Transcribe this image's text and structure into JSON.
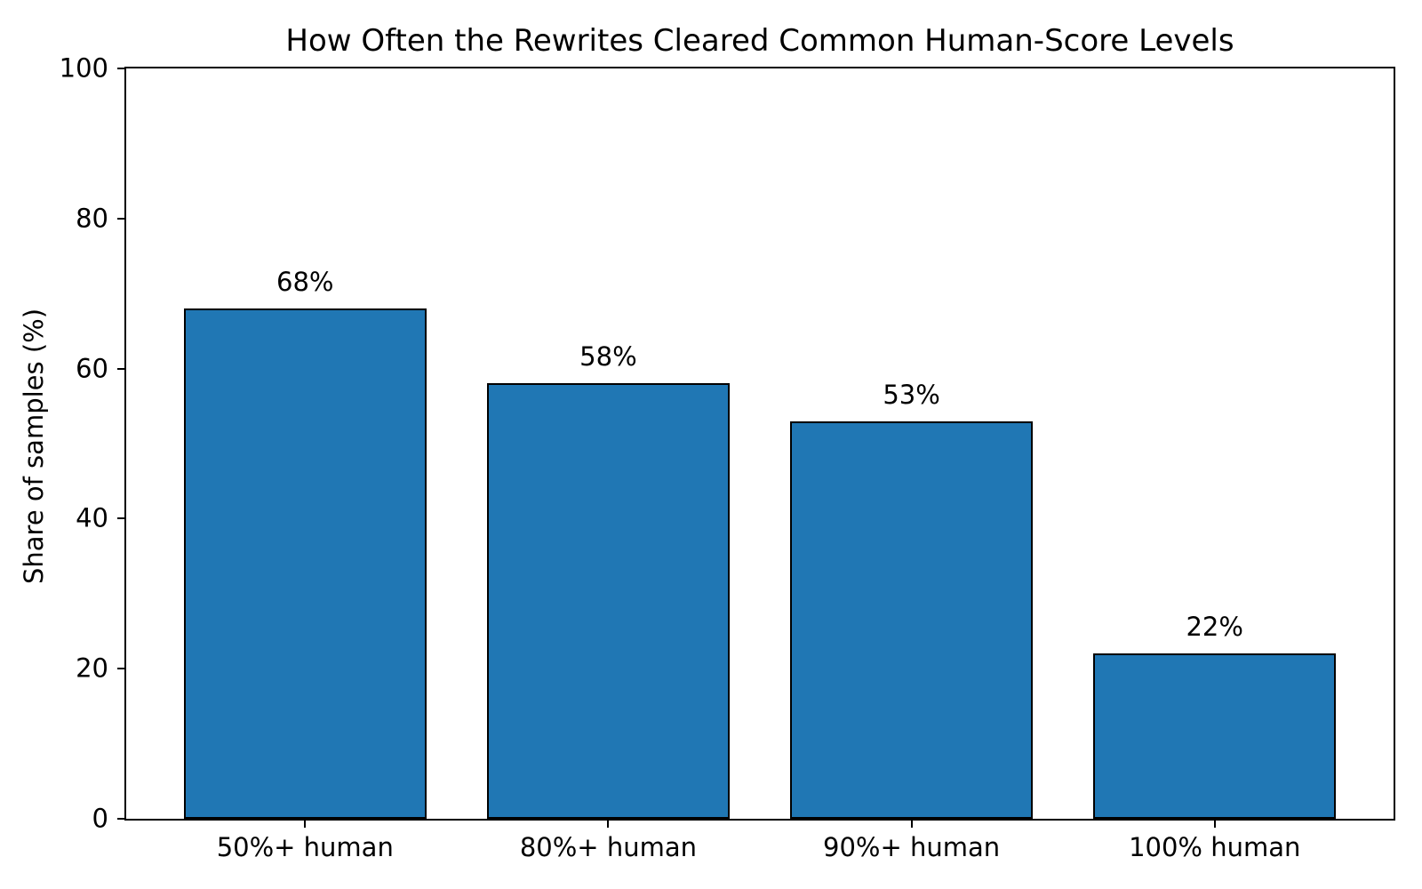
{
  "chart_data": {
    "type": "bar",
    "title": "How Often the Rewrites Cleared Common Human-Score Levels",
    "xlabel": "",
    "ylabel": "Share of samples (%)",
    "categories": [
      "50%+ human",
      "80%+ human",
      "90%+ human",
      "100% human"
    ],
    "values": [
      68,
      58,
      53,
      22
    ],
    "value_labels": [
      "68%",
      "58%",
      "53%",
      "22%"
    ],
    "ylim": [
      0,
      100
    ],
    "yticks": [
      "0",
      "20",
      "40",
      "60",
      "80",
      "100"
    ],
    "bar_color": "#2077b4",
    "bar_edge_color": "#000000",
    "grid": false,
    "legend": false,
    "legend_position": "none"
  }
}
